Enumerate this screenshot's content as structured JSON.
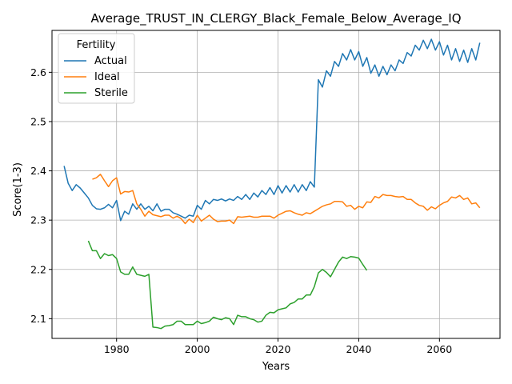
{
  "chart_data": {
    "type": "line",
    "title": "Average_TRUST_IN_CLERGY_Black_Female_Below_Average_IQ",
    "xlabel": "Years",
    "ylabel": "Score(1-3)",
    "xlim": [
      1964,
      2075
    ],
    "ylim": [
      2.06,
      2.685
    ],
    "xticks": [
      1980,
      2000,
      2020,
      2040,
      2060
    ],
    "yticks": [
      2.1,
      2.2,
      2.3,
      2.4,
      2.5,
      2.6
    ],
    "grid": true,
    "legend": {
      "title": "Fertility",
      "placement": "top-left"
    },
    "series": [
      {
        "name": "Actual",
        "color": "#1f77b4",
        "x": [
          1967,
          1968,
          1969,
          1970,
          1971,
          1972,
          1973,
          1974,
          1975,
          1976,
          1977,
          1978,
          1979,
          1980,
          1981,
          1982,
          1983,
          1984,
          1985,
          1986,
          1987,
          1988,
          1989,
          1990,
          1991,
          1992,
          1993,
          1994,
          1995,
          1996,
          1997,
          1998,
          1999,
          2000,
          2001,
          2002,
          2003,
          2004,
          2005,
          2006,
          2007,
          2008,
          2009,
          2010,
          2011,
          2012,
          2013,
          2014,
          2015,
          2016,
          2017,
          2018,
          2019,
          2020,
          2021,
          2022,
          2023,
          2024,
          2025,
          2026,
          2027,
          2028,
          2029,
          2030,
          2031,
          2032,
          2033,
          2034,
          2035,
          2036,
          2037,
          2038,
          2039,
          2040,
          2041,
          2042,
          2043,
          2044,
          2045,
          2046,
          2047,
          2048,
          2049,
          2050,
          2051,
          2052,
          2053,
          2054,
          2055,
          2056,
          2057,
          2058,
          2059,
          2060,
          2061,
          2062,
          2063,
          2064,
          2065,
          2066,
          2067,
          2068,
          2069,
          2070
        ],
        "y": [
          2.41,
          2.375,
          2.36,
          2.372,
          2.365,
          2.355,
          2.345,
          2.33,
          2.323,
          2.322,
          2.325,
          2.332,
          2.325,
          2.34,
          2.299,
          2.318,
          2.312,
          2.333,
          2.322,
          2.333,
          2.322,
          2.328,
          2.319,
          2.333,
          2.318,
          2.322,
          2.322,
          2.315,
          2.312,
          2.308,
          2.304,
          2.31,
          2.308,
          2.33,
          2.322,
          2.34,
          2.333,
          2.342,
          2.34,
          2.343,
          2.339,
          2.343,
          2.34,
          2.348,
          2.342,
          2.352,
          2.342,
          2.355,
          2.347,
          2.36,
          2.352,
          2.366,
          2.352,
          2.37,
          2.355,
          2.37,
          2.357,
          2.372,
          2.357,
          2.372,
          2.36,
          2.378,
          2.367,
          2.585,
          2.57,
          2.603,
          2.592,
          2.622,
          2.612,
          2.638,
          2.625,
          2.646,
          2.625,
          2.642,
          2.612,
          2.63,
          2.598,
          2.615,
          2.592,
          2.612,
          2.595,
          2.615,
          2.603,
          2.625,
          2.618,
          2.64,
          2.633,
          2.655,
          2.645,
          2.665,
          2.648,
          2.667,
          2.645,
          2.662,
          2.635,
          2.655,
          2.625,
          2.648,
          2.622,
          2.645,
          2.62,
          2.648,
          2.625,
          2.66
        ]
      },
      {
        "name": "Ideal",
        "color": "#ff7f0e",
        "x": [
          1974,
          1975,
          1976,
          1977,
          1978,
          1979,
          1980,
          1981,
          1982,
          1983,
          1984,
          1985,
          1986,
          1987,
          1988,
          1989,
          1990,
          1991,
          1992,
          1993,
          1994,
          1995,
          1996,
          1997,
          1998,
          1999,
          2000,
          2001,
          2002,
          2003,
          2004,
          2005,
          2006,
          2007,
          2008,
          2009,
          2010,
          2011,
          2012,
          2013,
          2014,
          2015,
          2016,
          2017,
          2018,
          2019,
          2020,
          2021,
          2022,
          2023,
          2024,
          2025,
          2026,
          2027,
          2028,
          2029,
          2030,
          2031,
          2032,
          2033,
          2034,
          2035,
          2036,
          2037,
          2038,
          2039,
          2040,
          2041,
          2042,
          2043,
          2044,
          2045,
          2046,
          2047,
          2048,
          2049,
          2050,
          2051,
          2052,
          2053,
          2054,
          2055,
          2056,
          2057,
          2058,
          2059,
          2060,
          2061,
          2062,
          2063,
          2064,
          2065,
          2066,
          2067,
          2068,
          2069,
          2070
        ],
        "y": [
          2.383,
          2.386,
          2.393,
          2.38,
          2.368,
          2.38,
          2.386,
          2.353,
          2.358,
          2.357,
          2.36,
          2.333,
          2.322,
          2.308,
          2.318,
          2.311,
          2.309,
          2.307,
          2.31,
          2.31,
          2.304,
          2.308,
          2.303,
          2.293,
          2.302,
          2.295,
          2.31,
          2.298,
          2.304,
          2.31,
          2.302,
          2.297,
          2.298,
          2.298,
          2.3,
          2.293,
          2.307,
          2.306,
          2.307,
          2.308,
          2.306,
          2.306,
          2.308,
          2.308,
          2.308,
          2.304,
          2.31,
          2.314,
          2.318,
          2.319,
          2.315,
          2.312,
          2.31,
          2.315,
          2.313,
          2.318,
          2.323,
          2.328,
          2.331,
          2.333,
          2.338,
          2.338,
          2.337,
          2.328,
          2.33,
          2.322,
          2.328,
          2.325,
          2.337,
          2.336,
          2.348,
          2.345,
          2.352,
          2.35,
          2.35,
          2.348,
          2.347,
          2.348,
          2.342,
          2.342,
          2.335,
          2.33,
          2.328,
          2.32,
          2.327,
          2.323,
          2.33,
          2.335,
          2.338,
          2.347,
          2.345,
          2.35,
          2.342,
          2.345,
          2.333,
          2.335,
          2.325
        ]
      },
      {
        "name": "Sterile",
        "color": "#2ca02c",
        "x": [
          1973,
          1974,
          1975,
          1976,
          1977,
          1978,
          1979,
          1980,
          1981,
          1982,
          1983,
          1984,
          1985,
          1986,
          1987,
          1988,
          1989,
          1990,
          1991,
          1992,
          1993,
          1994,
          1995,
          1996,
          1997,
          1998,
          1999,
          2000,
          2001,
          2002,
          2003,
          2004,
          2005,
          2006,
          2007,
          2008,
          2009,
          2010,
          2011,
          2012,
          2013,
          2014,
          2015,
          2016,
          2017,
          2018,
          2019,
          2020,
          2021,
          2022,
          2023,
          2024,
          2025,
          2026,
          2027,
          2028,
          2029,
          2030,
          2031,
          2032,
          2033,
          2034,
          2035,
          2036,
          2037,
          2038,
          2039,
          2040,
          2041,
          2042
        ],
        "y": [
          2.258,
          2.238,
          2.238,
          2.222,
          2.232,
          2.228,
          2.23,
          2.222,
          2.195,
          2.19,
          2.19,
          2.205,
          2.19,
          2.188,
          2.186,
          2.19,
          2.083,
          2.082,
          2.08,
          2.085,
          2.086,
          2.088,
          2.095,
          2.095,
          2.088,
          2.088,
          2.088,
          2.095,
          2.09,
          2.092,
          2.095,
          2.103,
          2.1,
          2.098,
          2.102,
          2.1,
          2.088,
          2.107,
          2.104,
          2.104,
          2.1,
          2.098,
          2.093,
          2.095,
          2.107,
          2.113,
          2.112,
          2.118,
          2.12,
          2.122,
          2.13,
          2.133,
          2.14,
          2.14,
          2.148,
          2.148,
          2.165,
          2.193,
          2.2,
          2.194,
          2.185,
          2.2,
          2.215,
          2.225,
          2.222,
          2.226,
          2.225,
          2.223,
          2.21,
          2.198
        ]
      }
    ]
  }
}
